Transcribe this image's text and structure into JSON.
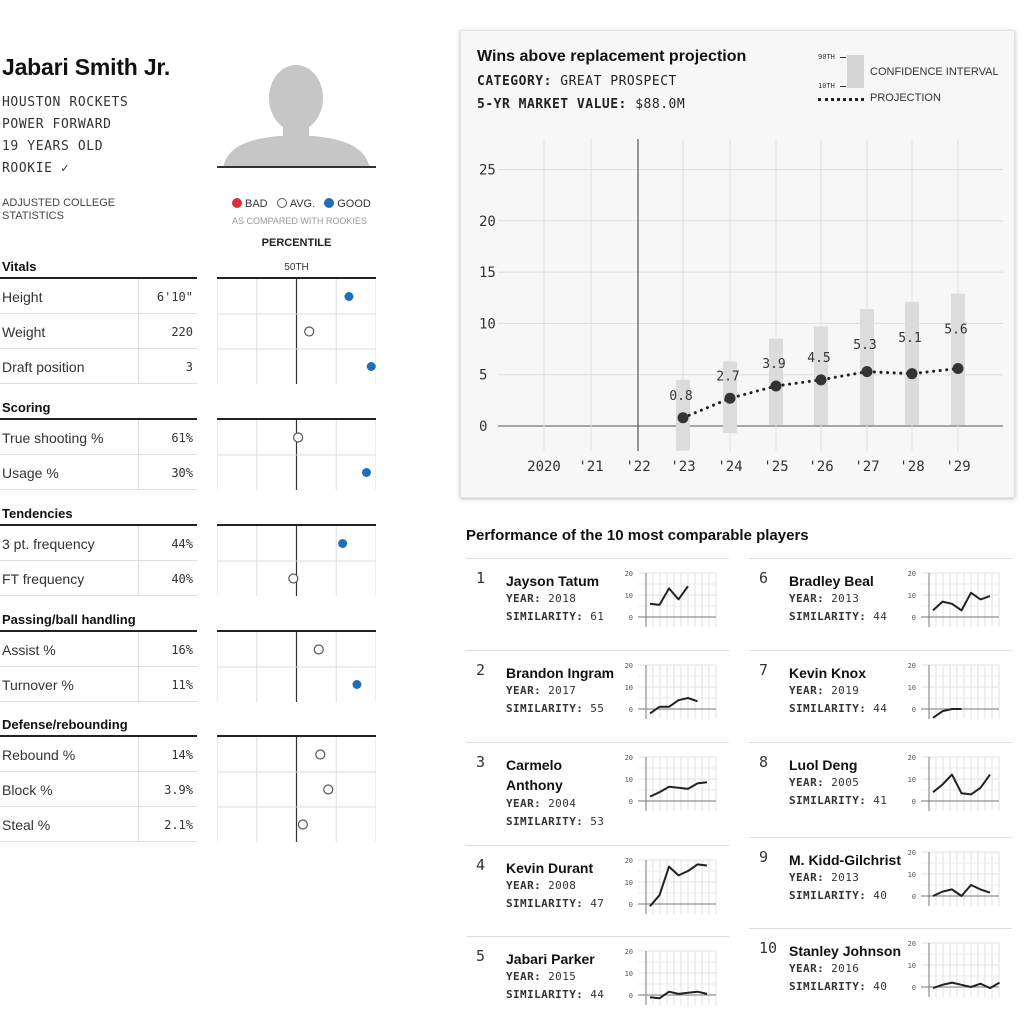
{
  "player": {
    "name": "Jabari Smith Jr.",
    "team": "HOUSTON ROCKETS",
    "position": "POWER FORWARD",
    "age": "19 YEARS OLD",
    "status": "ROOKIE ✓"
  },
  "stats_header": {
    "label": "ADJUSTED COLLEGE STATISTICS",
    "legend_bad": "BAD",
    "legend_avg": "AVG.",
    "legend_good": "GOOD",
    "legend_note": "AS COMPARED WITH ROOKIES",
    "percentile_title": "PERCENTILE",
    "percentile_mid": "50TH"
  },
  "colors": {
    "good": "#1f6fb8",
    "bad": "#d7313b",
    "avg": "#ffffff",
    "ink": "#222222"
  },
  "sections": [
    {
      "title": "Vitals",
      "rows": [
        {
          "label": "Height",
          "value": "6'10\"",
          "percentile": 83,
          "rating": "good"
        },
        {
          "label": "Weight",
          "value": "220",
          "percentile": 58,
          "rating": "avg"
        },
        {
          "label": "Draft position",
          "value": "3",
          "percentile": 97,
          "rating": "good"
        }
      ]
    },
    {
      "title": "Scoring",
      "rows": [
        {
          "label": "True shooting %",
          "value": "61%",
          "percentile": 51,
          "rating": "avg"
        },
        {
          "label": "Usage %",
          "value": "30%",
          "percentile": 94,
          "rating": "good"
        }
      ]
    },
    {
      "title": "Tendencies",
      "rows": [
        {
          "label": "3 pt. frequency",
          "value": "44%",
          "percentile": 79,
          "rating": "good"
        },
        {
          "label": "FT frequency",
          "value": "40%",
          "percentile": 48,
          "rating": "avg"
        }
      ]
    },
    {
      "title": "Passing/ball handling",
      "rows": [
        {
          "label": "Assist %",
          "value": "16%",
          "percentile": 64,
          "rating": "avg"
        },
        {
          "label": "Turnover %",
          "value": "11%",
          "percentile": 88,
          "rating": "good"
        }
      ]
    },
    {
      "title": "Defense/rebounding",
      "rows": [
        {
          "label": "Rebound %",
          "value": "14%",
          "percentile": 65,
          "rating": "avg"
        },
        {
          "label": "Block %",
          "value": "3.9%",
          "percentile": 70,
          "rating": "avg"
        },
        {
          "label": "Steal %",
          "value": "2.1%",
          "percentile": 54,
          "rating": "avg"
        }
      ]
    }
  ],
  "war": {
    "title": "Wins above replacement projection",
    "category_label": "CATEGORY:",
    "category_value": "GREAT PROSPECT",
    "market_label": "5-YR MARKET VALUE:",
    "market_value": "$88.0M",
    "legend_90": "90TH",
    "legend_10": "10TH",
    "legend_ci": "CONFIDENCE INTERVAL",
    "legend_proj": "PROJECTION"
  },
  "chart_data": [
    {
      "type": "line",
      "title": "Wins above replacement projection",
      "categories": [
        "2020",
        "'21",
        "'22",
        "'23",
        "'24",
        "'25",
        "'26",
        "'27",
        "'28",
        "'29"
      ],
      "series": [
        {
          "name": "PROJECTION",
          "values": [
            null,
            null,
            null,
            0.8,
            2.7,
            3.9,
            4.5,
            5.3,
            5.1,
            5.6
          ]
        },
        {
          "name": "CONFIDENCE INTERVAL",
          "low": [
            null,
            null,
            null,
            -2.4,
            -0.7,
            0.1,
            0.1,
            0.1,
            0.1,
            0.1
          ],
          "high": [
            null,
            null,
            null,
            4.5,
            6.3,
            8.5,
            9.7,
            11.4,
            12.1,
            12.9
          ]
        }
      ],
      "labels": [
        "0.8",
        "2.7",
        "3.9",
        "4.5",
        "5.3",
        "5.1",
        "5.6"
      ],
      "yticks": [
        0,
        5,
        10,
        15,
        20,
        25
      ],
      "ylim": [
        -3,
        27
      ],
      "grid": true
    }
  ],
  "comparables": {
    "title": "Performance of the 10 most comparable players",
    "year_label": "YEAR:",
    "similarity_label": "SIMILARITY:",
    "spark_ticks": [
      "20",
      "10",
      "0"
    ],
    "players": [
      {
        "rank": "1",
        "name": "Jayson Tatum",
        "year": "2018",
        "similarity": "61",
        "war": [
          6,
          5.5,
          13,
          8,
          14
        ]
      },
      {
        "rank": "2",
        "name": "Brandon Ingram",
        "year": "2017",
        "similarity": "55",
        "war": [
          -2,
          1,
          1,
          4,
          5,
          3.5
        ]
      },
      {
        "rank": "3",
        "name": "Carmelo Anthony",
        "year": "2004",
        "similarity": "53",
        "war": [
          2,
          4,
          6.5,
          6,
          5.5,
          8,
          8.5
        ]
      },
      {
        "rank": "4",
        "name": "Kevin Durant",
        "year": "2008",
        "similarity": "47",
        "war": [
          -1,
          4,
          17,
          13,
          15,
          18,
          17.5
        ]
      },
      {
        "rank": "5",
        "name": "Jabari Parker",
        "year": "2015",
        "similarity": "44",
        "war": [
          -1,
          -1.5,
          1.5,
          0.5,
          1,
          1.5,
          0.5
        ]
      },
      {
        "rank": "6",
        "name": "Bradley Beal",
        "year": "2013",
        "similarity": "44",
        "war": [
          3,
          7,
          6,
          3,
          11,
          8,
          9.5
        ]
      },
      {
        "rank": "7",
        "name": "Kevin Knox",
        "year": "2019",
        "similarity": "44",
        "war": [
          -4,
          -1,
          0,
          0
        ]
      },
      {
        "rank": "8",
        "name": "Luol Deng",
        "year": "2005",
        "similarity": "41",
        "war": [
          4,
          7.5,
          12,
          3.5,
          3,
          6,
          12
        ]
      },
      {
        "rank": "9",
        "name": "M. Kidd-Gilchrist",
        "year": "2013",
        "similarity": "40",
        "war": [
          0,
          2,
          3,
          0,
          5,
          3,
          1.5
        ]
      },
      {
        "rank": "10",
        "name": "Stanley Johnson",
        "year": "2016",
        "similarity": "40",
        "war": [
          -0.5,
          1,
          2,
          1,
          0,
          1.5,
          -0.5,
          2
        ]
      }
    ]
  }
}
